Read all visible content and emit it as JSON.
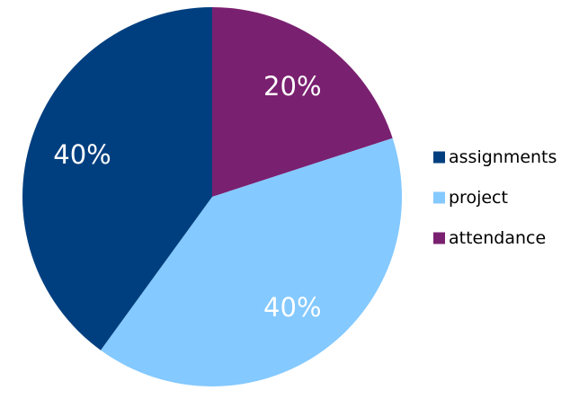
{
  "chart_data": {
    "type": "pie",
    "title": "",
    "categories": [
      "assignments",
      "project",
      "attendance"
    ],
    "values": [
      40,
      40,
      20
    ],
    "data_labels": [
      "40%",
      "40%",
      "20%"
    ],
    "colors": [
      "#003f7f",
      "#84c9ff",
      "#7a2070"
    ],
    "legend": {
      "placement": "right",
      "entries": [
        "assignments",
        "project",
        "attendance"
      ]
    }
  }
}
